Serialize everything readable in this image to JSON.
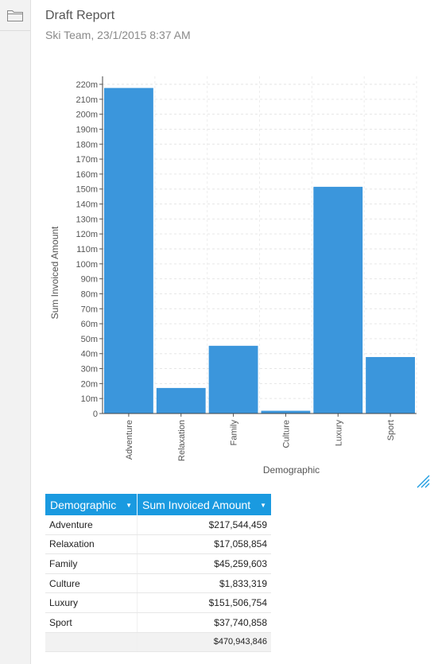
{
  "report": {
    "title": "Draft Report",
    "subtitle": "Ski Team, 23/1/2015 8:37 AM"
  },
  "sidebar": {
    "folder_icon": "folder-icon"
  },
  "chart_data": {
    "type": "bar",
    "categories": [
      "Adventure",
      "Relaxation",
      "Family",
      "Culture",
      "Luxury",
      "Sport"
    ],
    "values": [
      217544459,
      17058854,
      45259603,
      1833319,
      151506754,
      37740858
    ],
    "xlabel": "Demographic",
    "ylabel": "Sum Invoiced Amount",
    "ylim": [
      0,
      220000000
    ],
    "yticks": [
      "0",
      "10m",
      "20m",
      "30m",
      "40m",
      "50m",
      "60m",
      "70m",
      "80m",
      "90m",
      "100m",
      "110m",
      "120m",
      "130m",
      "140m",
      "150m",
      "160m",
      "170m",
      "180m",
      "190m",
      "200m",
      "210m",
      "220m"
    ],
    "grid": true,
    "bar_color": "#3b96dc"
  },
  "table": {
    "headers": [
      "Demographic",
      "Sum Invoiced Amount"
    ],
    "rows": [
      [
        "Adventure",
        "$217,544,459"
      ],
      [
        "Relaxation",
        "$17,058,854"
      ],
      [
        "Family",
        "$45,259,603"
      ],
      [
        "Culture",
        "$1,833,319"
      ],
      [
        "Luxury",
        "$151,506,754"
      ],
      [
        "Sport",
        "$37,740,858"
      ]
    ],
    "total": "$470,943,846",
    "header_color": "#1a9ae0"
  }
}
